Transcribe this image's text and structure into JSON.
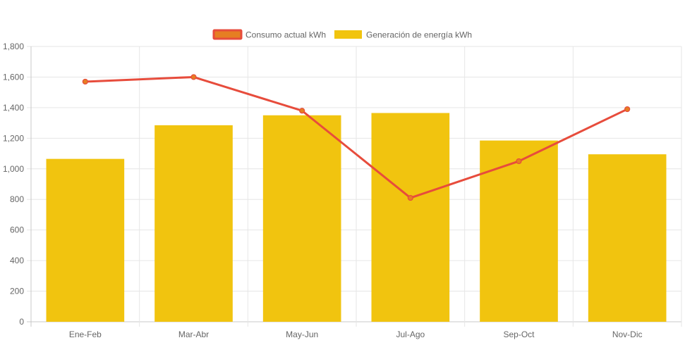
{
  "chart_data": {
    "type": "bar",
    "categories": [
      "Ene-Feb",
      "Mar-Abr",
      "May-Jun",
      "Jul-Ago",
      "Sep-Oct",
      "Nov-Dic"
    ],
    "series": [
      {
        "name": "Consumo actual kWh",
        "type": "line",
        "color": "#e74c3c",
        "point_color": "#e67e22",
        "values": [
          1570,
          1600,
          1380,
          810,
          1050,
          1390
        ]
      },
      {
        "name": "Generación de energía kWh",
        "type": "bar",
        "color": "#f1c40f",
        "values": [
          1065,
          1285,
          1350,
          1365,
          1185,
          1095
        ]
      }
    ],
    "ylim": [
      0,
      1800
    ],
    "yticks": [
      "0",
      "200",
      "400",
      "600",
      "800",
      "1,000",
      "1,200",
      "1,400",
      "1,600",
      "1,800"
    ],
    "ytick_values": [
      0,
      200,
      400,
      600,
      800,
      1000,
      1200,
      1400,
      1600,
      1800
    ],
    "grid": true,
    "legend_position": "top-center"
  }
}
